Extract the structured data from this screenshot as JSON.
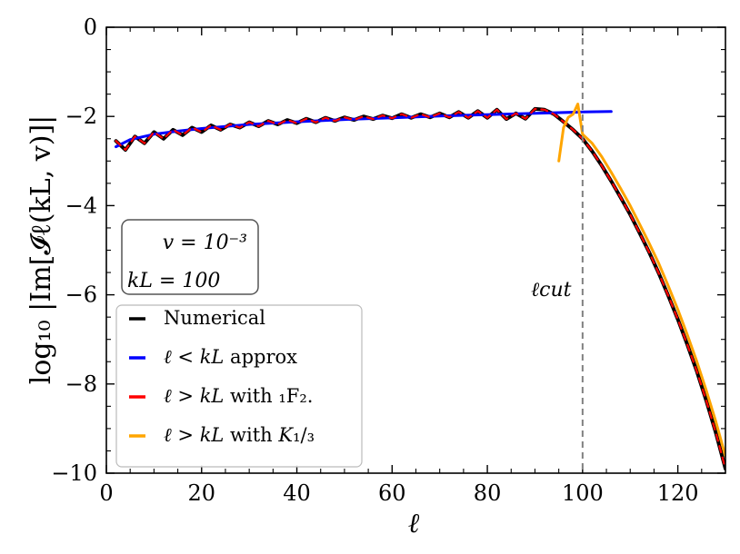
{
  "chart_data": {
    "type": "line",
    "title": "",
    "xlabel": "ℓ",
    "ylabel": "log₁₀ |Im[𝓘ℓ(kL, v)]|",
    "xlim": [
      0,
      130
    ],
    "ylim": [
      -10,
      0
    ],
    "x_ticks": [
      0,
      20,
      40,
      60,
      80,
      100,
      120
    ],
    "y_ticks": [
      0,
      -2,
      -4,
      -6,
      -8,
      -10
    ],
    "x_tick_labels": [
      "0",
      "20",
      "40",
      "60",
      "80",
      "100",
      "120"
    ],
    "y_tick_labels": [
      "0",
      "−2",
      "−4",
      "−6",
      "−8",
      "−10"
    ],
    "vline": {
      "x": 100,
      "label": "ℓcut",
      "color": "#808080"
    },
    "annotation": {
      "line1": "v = 10⁻³",
      "line2": "kL = 100"
    },
    "legend": {
      "location": "lower-left"
    },
    "series": [
      {
        "name": "Numerical",
        "legend_parts": [
          "Numerical"
        ],
        "color": "#000000",
        "dashed": false,
        "x": [
          2,
          4,
          6,
          8,
          10,
          12,
          14,
          16,
          18,
          20,
          22,
          24,
          26,
          28,
          30,
          32,
          34,
          36,
          38,
          40,
          42,
          44,
          46,
          48,
          50,
          52,
          54,
          56,
          58,
          60,
          62,
          64,
          66,
          68,
          70,
          72,
          74,
          76,
          78,
          80,
          82,
          84,
          86,
          88,
          90,
          92,
          94,
          96,
          98,
          100,
          102,
          104,
          106,
          108,
          110,
          112,
          114,
          116,
          118,
          120,
          122,
          124,
          126,
          128,
          130
        ],
        "y": [
          -2.55,
          -2.75,
          -2.45,
          -2.6,
          -2.35,
          -2.5,
          -2.3,
          -2.42,
          -2.25,
          -2.35,
          -2.2,
          -2.3,
          -2.18,
          -2.25,
          -2.13,
          -2.22,
          -2.1,
          -2.18,
          -2.08,
          -2.15,
          -2.05,
          -2.13,
          -2.03,
          -2.1,
          -2.02,
          -2.08,
          -2.0,
          -2.06,
          -1.98,
          -2.04,
          -1.95,
          -2.03,
          -1.95,
          -2.02,
          -1.93,
          -2.02,
          -1.9,
          -2.03,
          -1.88,
          -2.03,
          -1.85,
          -2.06,
          -1.93,
          -2.05,
          -1.83,
          -1.85,
          -1.95,
          -2.12,
          -2.3,
          -2.5,
          -2.78,
          -3.1,
          -3.45,
          -3.82,
          -4.2,
          -4.62,
          -5.05,
          -5.52,
          -6.02,
          -6.55,
          -7.12,
          -7.72,
          -8.38,
          -9.1,
          -9.9
        ]
      },
      {
        "name": "ℓ < kL approx",
        "legend_parts": [
          "ℓ",
          " < ",
          "kL",
          " approx"
        ],
        "color": "#0000ff",
        "dashed": false,
        "x": [
          2,
          5,
          10,
          15,
          20,
          30,
          40,
          50,
          60,
          70,
          80,
          90,
          100,
          106
        ],
        "y": [
          -2.68,
          -2.52,
          -2.4,
          -2.33,
          -2.27,
          -2.18,
          -2.12,
          -2.07,
          -2.03,
          -1.99,
          -1.96,
          -1.93,
          -1.9,
          -1.89
        ]
      },
      {
        "name": "ℓ > kL with ₁F₂.",
        "legend_parts": [
          "ℓ",
          " > ",
          "kL",
          " with ₁F₂."
        ],
        "color": "#ff0000",
        "dashed": true,
        "x": [
          2,
          4,
          6,
          8,
          10,
          12,
          14,
          16,
          18,
          20,
          22,
          24,
          26,
          28,
          30,
          32,
          34,
          36,
          38,
          40,
          42,
          44,
          46,
          48,
          50,
          52,
          54,
          56,
          58,
          60,
          62,
          64,
          66,
          68,
          70,
          72,
          74,
          76,
          78,
          80,
          82,
          84,
          86,
          88,
          90,
          92,
          94,
          96,
          98,
          100,
          102,
          104,
          106,
          108,
          110,
          112,
          114,
          116,
          118,
          120,
          122,
          124,
          126,
          128,
          130
        ],
        "y": [
          -2.55,
          -2.75,
          -2.45,
          -2.6,
          -2.35,
          -2.5,
          -2.3,
          -2.42,
          -2.25,
          -2.35,
          -2.2,
          -2.3,
          -2.18,
          -2.25,
          -2.13,
          -2.22,
          -2.1,
          -2.18,
          -2.08,
          -2.15,
          -2.05,
          -2.13,
          -2.03,
          -2.1,
          -2.02,
          -2.08,
          -2.0,
          -2.06,
          -1.98,
          -2.04,
          -1.95,
          -2.03,
          -1.95,
          -2.02,
          -1.93,
          -2.02,
          -1.9,
          -2.03,
          -1.88,
          -2.03,
          -1.85,
          -2.06,
          -1.93,
          -2.05,
          -1.83,
          -1.85,
          -1.95,
          -2.12,
          -2.3,
          -2.5,
          -2.78,
          -3.1,
          -3.45,
          -3.82,
          -4.2,
          -4.62,
          -5.05,
          -5.52,
          -6.02,
          -6.55,
          -7.12,
          -7.72,
          -8.38,
          -9.1,
          -9.9
        ]
      },
      {
        "name": "ℓ > kL with K₁/₃",
        "legend_parts": [
          "ℓ",
          " > ",
          "kL",
          " with ",
          "K",
          "₁/₃"
        ],
        "color": "#ffa500",
        "dashed": false,
        "x": [
          95,
          96,
          97,
          98,
          99,
          100,
          102,
          104,
          106,
          108,
          110,
          112,
          114,
          116,
          118,
          120,
          122,
          124,
          126,
          128,
          130
        ],
        "y": [
          -3.0,
          -2.25,
          -2.02,
          -1.95,
          -1.72,
          -2.4,
          -2.6,
          -2.9,
          -3.25,
          -3.62,
          -4.0,
          -4.42,
          -4.85,
          -5.3,
          -5.8,
          -6.33,
          -6.9,
          -7.5,
          -8.15,
          -8.85,
          -9.62
        ]
      }
    ]
  }
}
